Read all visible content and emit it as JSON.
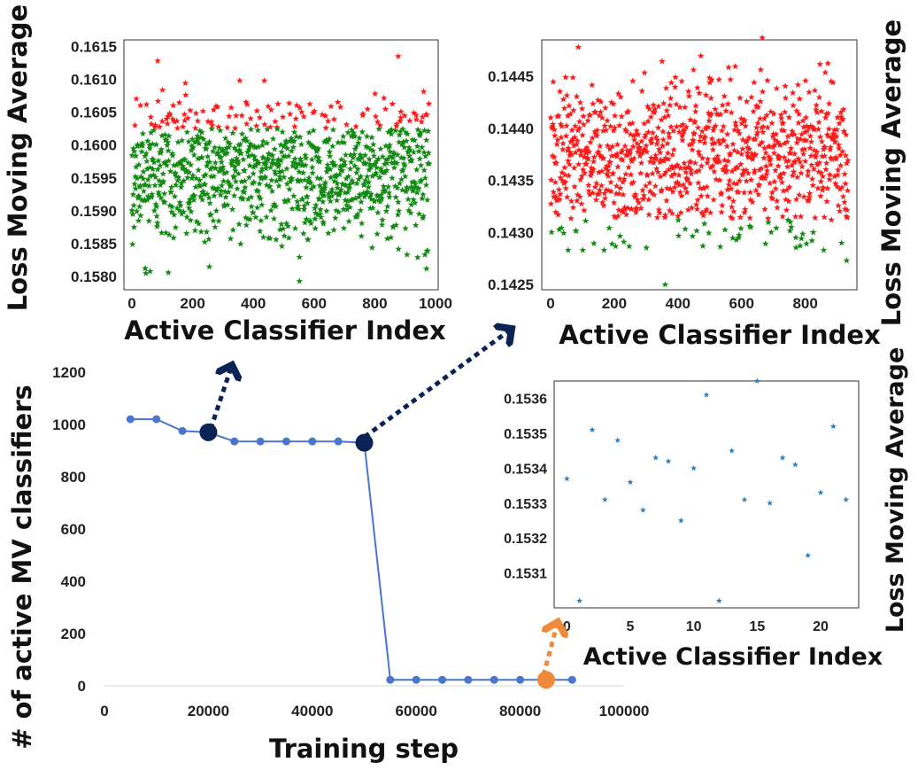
{
  "colors": {
    "green": "#138a13",
    "red": "#ff1a1a",
    "blue_star": "#2a7fc0",
    "line": "#4a76cc",
    "navy": "#0b2354",
    "orange": "#f0893a",
    "frame": "#333333"
  },
  "chart_data": [
    {
      "id": "top_left",
      "type": "scatter",
      "marker": "star",
      "xlabel": "Active Classifier Index",
      "ylabel": "Loss Moving Average",
      "xlim": [
        0,
        1000
      ],
      "ylim": [
        0.1578,
        0.1616
      ],
      "xticks": [
        0,
        200,
        400,
        600,
        800,
        1000
      ],
      "yticks": [
        0.158,
        0.1585,
        0.159,
        0.1595,
        0.16,
        0.1605,
        0.161,
        0.1615
      ],
      "yticklabels": [
        "0.1580",
        "0.1585",
        "0.1590",
        "0.1595",
        "0.1600",
        "0.1605",
        "0.1610",
        "0.1615"
      ],
      "n_points": 980,
      "threshold": 0.16025,
      "series": [
        {
          "color": "green",
          "values": "0.1580-0.1603 (about 930 points, dense around 0.1595)"
        },
        {
          "color": "red",
          "values": "above 0.16025 (about 40 points)"
        }
      ],
      "outliers": [
        [
          85,
          0.16128,
          "red"
        ],
        [
          877,
          0.16135,
          "red"
        ],
        [
          552,
          0.15793,
          "green"
        ],
        [
          120,
          0.15806,
          "green"
        ],
        [
          60,
          0.15808,
          "green"
        ],
        [
          255,
          0.15815,
          "green"
        ],
        [
          970,
          0.15812,
          "green"
        ]
      ]
    },
    {
      "id": "top_right",
      "type": "scatter",
      "marker": "star",
      "xlabel": "Active Classifier Index",
      "ylabel": "Loss Moving Average",
      "xlim": [
        0,
        940
      ],
      "ylim": [
        0.14245,
        0.14485
      ],
      "xticks": [
        0,
        200,
        400,
        600,
        800
      ],
      "yticks": [
        0.1425,
        0.143,
        0.1435,
        0.144,
        0.1445
      ],
      "yticklabels": [
        "0.1425",
        "0.1430",
        "0.1435",
        "0.1440",
        "0.1445"
      ],
      "n_points": 935,
      "threshold": 0.14312,
      "series": [
        {
          "color": "red",
          "values": "0.1431-0.1448 (about 915 points, dense around 0.1437)"
        },
        {
          "color": "green",
          "values": "below 0.14312 (about 20 points)"
        }
      ],
      "outliers": [
        [
          665,
          0.14487,
          "red"
        ],
        [
          360,
          0.1425,
          "green"
        ],
        [
          930,
          0.14273,
          "green"
        ],
        [
          55,
          0.14283,
          "green"
        ]
      ]
    },
    {
      "id": "bottom_left",
      "type": "line",
      "xlabel": "Training step",
      "ylabel": "# of active MV classifiers",
      "xlim": [
        0,
        100000
      ],
      "ylim": [
        0,
        1200
      ],
      "xticks": [
        0,
        20000,
        40000,
        60000,
        80000,
        100000
      ],
      "yticks": [
        0,
        200,
        400,
        600,
        800,
        1000,
        1200
      ],
      "x": [
        5000,
        10000,
        15000,
        20000,
        25000,
        30000,
        35000,
        40000,
        45000,
        50000,
        55000,
        60000,
        65000,
        70000,
        75000,
        80000,
        85000,
        90000
      ],
      "values": [
        1020,
        1020,
        975,
        970,
        935,
        935,
        935,
        935,
        935,
        930,
        23,
        23,
        23,
        23,
        23,
        23,
        23,
        23
      ],
      "highlights": [
        {
          "x": 20000,
          "y": 970,
          "color": "navy"
        },
        {
          "x": 50000,
          "y": 930,
          "color": "navy"
        },
        {
          "x": 85000,
          "y": 23,
          "color": "orange"
        }
      ]
    },
    {
      "id": "bottom_right",
      "type": "scatter",
      "marker": "star",
      "xlabel": "Active Classifier Index",
      "ylabel": "Loss Moving Average",
      "xlim": [
        -1,
        23
      ],
      "ylim": [
        0.153,
        0.15365
      ],
      "xticks": [
        0,
        5,
        10,
        15,
        20
      ],
      "yticks": [
        0.1531,
        0.1532,
        0.1533,
        0.1534,
        0.1535,
        0.1536
      ],
      "yticklabels": [
        "0.1531",
        "0.1532",
        "0.1533",
        "0.1534",
        "0.1535",
        "0.1536"
      ],
      "x": [
        0,
        1,
        2,
        3,
        4,
        5,
        6,
        7,
        8,
        9,
        10,
        11,
        12,
        13,
        14,
        15,
        16,
        17,
        18,
        19,
        20,
        21,
        22
      ],
      "values": [
        0.15337,
        0.15302,
        0.15351,
        0.15331,
        0.15348,
        0.15336,
        0.15328,
        0.15343,
        0.15342,
        0.15325,
        0.1534,
        0.15361,
        0.15302,
        0.15345,
        0.15331,
        0.15365,
        0.1533,
        0.15343,
        0.15341,
        0.15315,
        0.15333,
        0.15352,
        0.15331
      ]
    }
  ]
}
